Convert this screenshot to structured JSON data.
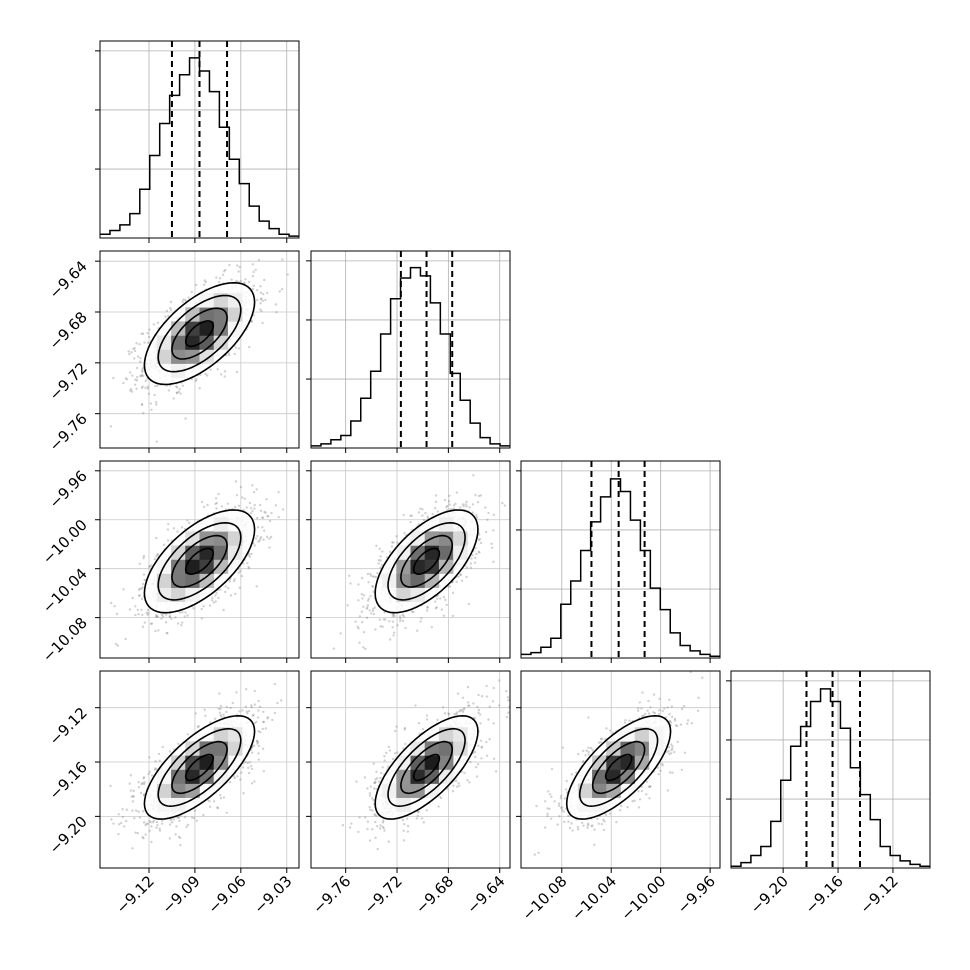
{
  "chart_data": {
    "type": "corner",
    "parameters": 4,
    "grid": true,
    "quantile_lines_style": "dashed",
    "histograms": [
      {
        "param": 0,
        "quantiles": [
          -9.105,
          -9.087,
          -9.069
        ],
        "x_range": [
          -9.152,
          -9.022
        ],
        "ylim": [
          0,
          0.105
        ],
        "values": [
          0.002,
          0.004,
          0.007,
          0.013,
          0.026,
          0.044,
          0.061,
          0.076,
          0.087,
          0.096,
          0.089,
          0.078,
          0.059,
          0.042,
          0.029,
          0.017,
          0.009,
          0.005,
          0.002,
          0.001
        ]
      },
      {
        "param": 1,
        "quantiles": [
          -9.717,
          -9.697,
          -9.677
        ],
        "x_range": [
          -9.787,
          -9.632
        ],
        "ylim": [
          0,
          0.095
        ],
        "values": [
          0.001,
          0.002,
          0.004,
          0.006,
          0.013,
          0.024,
          0.037,
          0.055,
          0.072,
          0.082,
          0.087,
          0.083,
          0.07,
          0.055,
          0.036,
          0.023,
          0.012,
          0.005,
          0.002,
          0.001
        ]
      },
      {
        "param": 2,
        "quantiles": [
          -10.056,
          -10.034,
          -10.013
        ],
        "x_range": [
          -10.113,
          -9.952
        ],
        "ylim": [
          0,
          0.11
        ],
        "values": [
          0.002,
          0.003,
          0.006,
          0.011,
          0.03,
          0.043,
          0.06,
          0.076,
          0.09,
          0.1,
          0.093,
          0.077,
          0.06,
          0.039,
          0.027,
          0.014,
          0.007,
          0.004,
          0.002,
          0.001
        ]
      },
      {
        "param": 3,
        "quantiles": [
          -9.183,
          -9.164,
          -9.144
        ],
        "x_range": [
          -9.238,
          -9.093
        ],
        "ylim": [
          0,
          0.11
        ],
        "values": [
          0.001,
          0.003,
          0.007,
          0.012,
          0.026,
          0.049,
          0.068,
          0.079,
          0.093,
          0.1,
          0.093,
          0.078,
          0.056,
          0.041,
          0.027,
          0.012,
          0.007,
          0.004,
          0.002,
          0.001
        ]
      }
    ],
    "scatter_panels": [
      {
        "row": 1,
        "col": 0,
        "mean": [
          -9.087,
          -9.697
        ],
        "std": [
          0.018,
          0.02
        ],
        "corr": 0.62
      },
      {
        "row": 2,
        "col": 0,
        "mean": [
          -9.087,
          -10.034
        ],
        "std": [
          0.018,
          0.021
        ],
        "corr": 0.62
      },
      {
        "row": 2,
        "col": 1,
        "mean": [
          -9.697,
          -10.034
        ],
        "std": [
          0.02,
          0.021
        ],
        "corr": 0.62
      },
      {
        "row": 3,
        "col": 0,
        "mean": [
          -9.087,
          -9.164
        ],
        "std": [
          0.018,
          0.019
        ],
        "corr": 0.7
      },
      {
        "row": 3,
        "col": 1,
        "mean": [
          -9.697,
          -9.164
        ],
        "std": [
          0.02,
          0.019
        ],
        "corr": 0.7
      },
      {
        "row": 3,
        "col": 2,
        "mean": [
          -10.034,
          -9.164
        ],
        "std": [
          0.021,
          0.019
        ],
        "corr": 0.7
      }
    ],
    "contour_levels_sigma": [
      0.5,
      1.0,
      1.5,
      2.0
    ],
    "axes": [
      {
        "param": 0,
        "ticks": [
          -9.12,
          -9.09,
          -9.06,
          -9.03
        ],
        "tick_labels": [
          "−9.12",
          "−9.09",
          "−9.06",
          "−9.03"
        ]
      },
      {
        "param": 1,
        "ticks": [
          -9.76,
          -9.72,
          -9.68,
          -9.64
        ],
        "tick_labels": [
          "−9.76",
          "−9.72",
          "−9.68",
          "−9.64"
        ]
      },
      {
        "param": 2,
        "ticks": [
          -10.08,
          -10.04,
          -10.0,
          -9.96
        ],
        "tick_labels": [
          "−10.08",
          "−10.04",
          "−10.00",
          "−9.96"
        ]
      },
      {
        "param": 3,
        "ticks": [
          -9.2,
          -9.16,
          -9.12
        ],
        "tick_labels": [
          "−9.20",
          "−9.16",
          "−9.12"
        ]
      }
    ]
  }
}
